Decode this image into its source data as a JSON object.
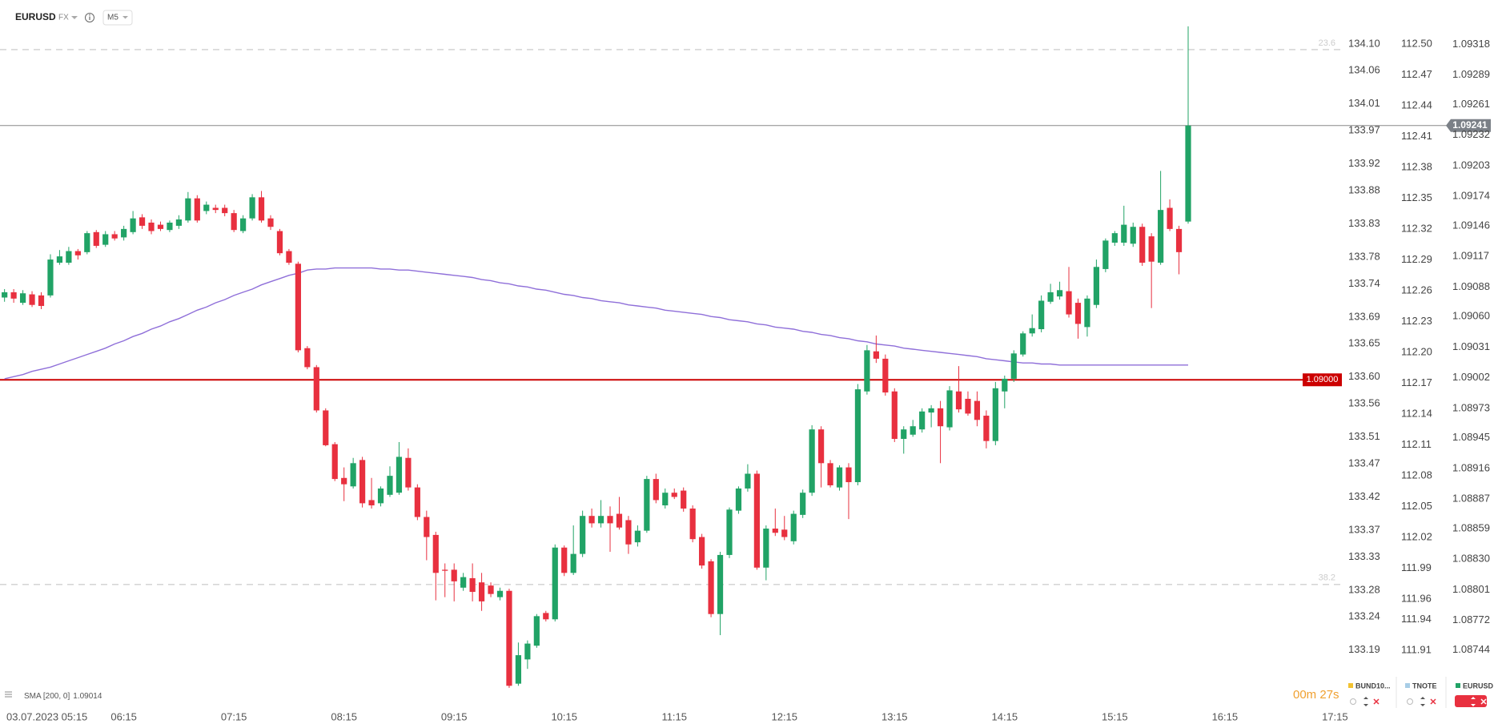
{
  "chart_data": {
    "type": "candlestick",
    "title": "EURUSD",
    "market": "FX",
    "timeframe": "M5",
    "up_color": "#21a366",
    "down_color": "#e8303f",
    "x": [
      "05:10",
      "05:15",
      "05:20",
      "05:25",
      "05:30",
      "05:35",
      "05:40",
      "05:45",
      "05:50",
      "05:55",
      "06:00",
      "06:05",
      "06:10",
      "06:15",
      "06:20",
      "06:25",
      "06:30",
      "06:35",
      "06:40",
      "06:45",
      "06:50",
      "06:55",
      "07:00",
      "07:05",
      "07:10",
      "07:15",
      "07:20",
      "07:25",
      "07:30",
      "07:35",
      "07:40",
      "07:45",
      "07:50",
      "07:55",
      "08:00",
      "08:05",
      "08:10",
      "08:15",
      "08:20",
      "08:25",
      "08:30",
      "08:35",
      "08:40",
      "08:45",
      "08:50",
      "08:55",
      "09:00",
      "09:05",
      "09:10",
      "09:15",
      "09:20",
      "09:25",
      "09:30",
      "09:35",
      "09:40",
      "09:45",
      "09:50",
      "09:55",
      "10:00",
      "10:05",
      "10:10",
      "10:15",
      "10:20",
      "10:25",
      "10:30",
      "10:35",
      "10:40",
      "10:45",
      "10:50",
      "10:55",
      "11:00",
      "11:05",
      "11:10",
      "11:15",
      "11:20",
      "11:25",
      "11:30",
      "11:35",
      "11:40",
      "11:45",
      "11:50",
      "11:55",
      "12:00",
      "12:05",
      "12:10",
      "12:15",
      "12:20",
      "12:25",
      "12:30",
      "12:35",
      "12:40",
      "12:45",
      "12:50",
      "12:55",
      "13:00",
      "13:05",
      "13:10",
      "13:15",
      "13:20",
      "13:25",
      "13:30",
      "13:35",
      "13:40",
      "13:45",
      "13:50",
      "13:55",
      "14:00",
      "14:05",
      "14:10",
      "14:15",
      "14:20",
      "14:25",
      "14:30",
      "14:35",
      "14:40",
      "14:45",
      "14:50",
      "14:55",
      "15:00",
      "15:05",
      "15:10",
      "15:15",
      "15:20",
      "15:25",
      "15:30",
      "15:35",
      "15:40",
      "15:45",
      "15:50",
      "15:55"
    ],
    "open": [
      1.09078,
      1.09083,
      1.09073,
      1.09081,
      1.0908,
      1.0908,
      1.09111,
      1.09111,
      1.09122,
      1.09121,
      1.0914,
      1.09128,
      1.09138,
      1.09135,
      1.0914,
      1.09154,
      1.09149,
      1.09147,
      1.09142,
      1.09146,
      1.09151,
      1.09172,
      1.0916,
      1.09163,
      1.09163,
      1.09158,
      1.09141,
      1.09153,
      1.09173,
      1.09153,
      1.09141,
      1.09122,
      1.0911,
      1.0903,
      1.09012,
      1.08971,
      1.08939,
      1.08907,
      1.08899,
      1.08924,
      1.08886,
      1.08883,
      1.08891,
      1.08893,
      1.08926,
      1.08898,
      1.0887,
      1.08853,
      1.0882,
      1.0882,
      1.08803,
      1.08812,
      1.08808,
      1.08805,
      1.08794,
      1.088,
      1.08712,
      1.08735,
      1.08748,
      1.08779,
      1.08773,
      1.08841,
      1.08817,
      1.08835,
      1.08871,
      1.08864,
      1.08871,
      1.08873,
      1.08867,
      1.08846,
      1.08857,
      1.08906,
      1.08881,
      1.08893,
      1.08895,
      1.08878,
      1.08851,
      1.08828,
      1.08778,
      1.08834,
      1.08876,
      1.08897,
      1.08911,
      1.08822,
      1.08859,
      1.08858,
      1.08847,
      1.08872,
      1.08893,
      1.08953,
      1.08921,
      1.08898,
      1.08917,
      1.08903,
      1.08989,
      1.09027,
      1.0902,
      1.08989,
      1.08944,
      1.08948,
      1.08953,
      1.08969,
      1.08973,
      1.08955,
      1.08989,
      1.08982,
      1.0898,
      1.08966,
      1.08942,
      1.08989,
      1.09001,
      1.09024,
      1.09044,
      1.09048,
      1.09074,
      1.09079,
      1.09084,
      1.09073,
      1.0905,
      1.09071,
      1.09105,
      1.0913,
      1.0913,
      1.09129,
      1.09145,
      1.09136,
      1.09111,
      1.09163,
      1.09143,
      1.0915
    ],
    "high": [
      1.09086,
      1.09086,
      1.09085,
      1.09084,
      1.09083,
      1.09119,
      1.09123,
      1.09126,
      1.09124,
      1.09141,
      1.09142,
      1.09141,
      1.09141,
      1.09146,
      1.0916,
      1.09157,
      1.09152,
      1.0915,
      1.09151,
      1.09156,
      1.09178,
      1.09175,
      1.09169,
      1.09166,
      1.09166,
      1.09161,
      1.09156,
      1.09176,
      1.09179,
      1.09156,
      1.09143,
      1.09124,
      1.09112,
      1.09032,
      1.09014,
      1.08973,
      1.08941,
      1.08917,
      1.08926,
      1.08927,
      1.08907,
      1.08899,
      1.08918,
      1.08941,
      1.08935,
      1.08901,
      1.08876,
      1.08856,
      1.08826,
      1.08826,
      1.08817,
      1.08826,
      1.08817,
      1.08808,
      1.08803,
      1.08802,
      1.08751,
      1.08753,
      1.08778,
      1.08781,
      1.08844,
      1.08843,
      1.08862,
      1.08876,
      1.08878,
      1.08886,
      1.0888,
      1.08889,
      1.08871,
      1.08862,
      1.08909,
      1.08911,
      1.08897,
      1.08897,
      1.08898,
      1.08881,
      1.08854,
      1.0883,
      1.08837,
      1.08879,
      1.08899,
      1.0892,
      1.08914,
      1.08862,
      1.08878,
      1.08871,
      1.08876,
      1.08896,
      1.08957,
      1.08956,
      1.08924,
      1.08919,
      1.08921,
      1.08996,
      1.09033,
      1.09042,
      1.09024,
      1.08992,
      1.08956,
      1.08962,
      1.08973,
      1.08976,
      1.0898,
      1.08994,
      1.09013,
      1.08989,
      1.08989,
      1.08971,
      1.08998,
      1.09004,
      1.09028,
      1.09046,
      1.09062,
      1.0908,
      1.09091,
      1.09093,
      1.09107,
      1.09077,
      1.0908,
      1.09114,
      1.09134,
      1.09141,
      1.09165,
      1.09149,
      1.09148,
      1.09139,
      1.09198,
      1.09171,
      1.09146,
      1.09335
    ],
    "low": [
      1.09074,
      1.09073,
      1.09071,
      1.09069,
      1.09067,
      1.09078,
      1.09109,
      1.09109,
      1.09114,
      1.09119,
      1.09125,
      1.09126,
      1.09132,
      1.09132,
      1.09138,
      1.09143,
      1.09138,
      1.09141,
      1.0914,
      1.09143,
      1.09149,
      1.09149,
      1.09157,
      1.09158,
      1.09155,
      1.0914,
      1.09139,
      1.09151,
      1.09149,
      1.09142,
      1.09118,
      1.09109,
      1.09026,
      1.0901,
      1.08969,
      1.08937,
      1.08904,
      1.08885,
      1.08897,
      1.08879,
      1.08878,
      1.0888,
      1.08889,
      1.08891,
      1.08895,
      1.08867,
      1.08829,
      1.08791,
      1.08794,
      1.0879,
      1.088,
      1.0879,
      1.08781,
      1.08794,
      1.08791,
      1.08708,
      1.0871,
      1.08726,
      1.08746,
      1.08771,
      1.08771,
      1.08814,
      1.08815,
      1.08832,
      1.0886,
      1.0886,
      1.08837,
      1.08858,
      1.08835,
      1.08842,
      1.08855,
      1.08883,
      1.08878,
      1.08887,
      1.08875,
      1.08846,
      1.08821,
      1.08775,
      1.08758,
      1.08831,
      1.08873,
      1.08894,
      1.0882,
      1.0881,
      1.08852,
      1.08848,
      1.08844,
      1.08869,
      1.0889,
      1.08898,
      1.08898,
      1.08895,
      1.08868,
      1.089,
      1.08986,
      1.09016,
      1.08985,
      1.08941,
      1.0893,
      1.08946,
      1.0895,
      1.08955,
      1.08921,
      1.08952,
      1.08969,
      1.08966,
      1.08956,
      1.08935,
      1.08938,
      1.08973,
      1.08998,
      1.09022,
      1.09041,
      1.09045,
      1.09072,
      1.09076,
      1.09059,
      1.09039,
      1.09041,
      1.09068,
      1.09102,
      1.09127,
      1.09127,
      1.09126,
      1.09108,
      1.09068,
      1.09109,
      1.09141,
      1.091,
      1.09148
    ],
    "close": [
      1.09083,
      1.09077,
      1.09082,
      1.09071,
      1.0907,
      1.09114,
      1.09117,
      1.09122,
      1.09118,
      1.09139,
      1.09127,
      1.09138,
      1.09134,
      1.09143,
      1.09153,
      1.09146,
      1.09141,
      1.09143,
      1.09149,
      1.09152,
      1.09172,
      1.09151,
      1.09166,
      1.09161,
      1.09158,
      1.09142,
      1.09153,
      1.09173,
      1.09151,
      1.09145,
      1.0912,
      1.09111,
      1.09028,
      1.09012,
      1.08971,
      1.08938,
      1.08906,
      1.08901,
      1.08921,
      1.08883,
      1.08881,
      1.08897,
      1.08909,
      1.08927,
      1.08898,
      1.0887,
      1.08851,
      1.08817,
      1.08819,
      1.08809,
      1.08813,
      1.08799,
      1.0879,
      1.08797,
      1.088,
      1.0871,
      1.08739,
      1.0875,
      1.08776,
      1.08773,
      1.08841,
      1.08817,
      1.08835,
      1.08871,
      1.08864,
      1.08871,
      1.08864,
      1.0886,
      1.08844,
      1.08857,
      1.08906,
      1.08886,
      1.08893,
      1.08889,
      1.08878,
      1.08849,
      1.08824,
      1.08778,
      1.08834,
      1.08877,
      1.08897,
      1.08911,
      1.08822,
      1.08859,
      1.08855,
      1.08851,
      1.08873,
      1.08893,
      1.08953,
      1.08921,
      1.089,
      1.08917,
      1.08903,
      1.08991,
      1.09028,
      1.0902,
      1.08988,
      1.08944,
      1.08953,
      1.08956,
      1.0897,
      1.08973,
      1.08956,
      1.0899,
      1.08972,
      1.08968,
      1.08962,
      1.08942,
      1.08992,
      1.09001,
      1.09025,
      1.09044,
      1.09049,
      1.09075,
      1.09083,
      1.09085,
      1.09062,
      1.09053,
      1.09077,
      1.09107,
      1.09132,
      1.09139,
      1.09147,
      1.09145,
      1.09111,
      1.09112,
      1.09161,
      1.09143,
      1.09121,
      1.09241
    ],
    "indicator": {
      "name": "SMA [200, 0]",
      "color": "#8f6fd9",
      "values": [
        1.09001,
        1.09003,
        1.09005,
        1.09008,
        1.0901,
        1.09012,
        1.09015,
        1.09018,
        1.09021,
        1.09024,
        1.09027,
        1.0903,
        1.09034,
        1.09037,
        1.09041,
        1.09044,
        1.09048,
        1.09051,
        1.09055,
        1.09058,
        1.09062,
        1.09066,
        1.09069,
        1.09073,
        1.09076,
        1.0908,
        1.09083,
        1.09086,
        1.0909,
        1.09093,
        1.09096,
        1.09099,
        1.09101,
        1.09104,
        1.09105,
        1.09105,
        1.09106,
        1.09106,
        1.09106,
        1.09106,
        1.09106,
        1.09105,
        1.09105,
        1.09104,
        1.09104,
        1.09103,
        1.09102,
        1.09101,
        1.091,
        1.09099,
        1.09098,
        1.09097,
        1.09095,
        1.09094,
        1.09092,
        1.09091,
        1.09089,
        1.09088,
        1.09086,
        1.09085,
        1.09083,
        1.09081,
        1.0908,
        1.09078,
        1.09077,
        1.09075,
        1.09074,
        1.09073,
        1.09071,
        1.0907,
        1.09069,
        1.09068,
        1.09066,
        1.09065,
        1.09064,
        1.09063,
        1.09062,
        1.0906,
        1.09059,
        1.09057,
        1.09056,
        1.09055,
        1.09053,
        1.09052,
        1.0905,
        1.09049,
        1.09048,
        1.09046,
        1.09045,
        1.09043,
        1.09042,
        1.0904,
        1.09039,
        1.09037,
        1.09036,
        1.09034,
        1.09033,
        1.09032,
        1.0903,
        1.09029,
        1.09028,
        1.09027,
        1.09026,
        1.09025,
        1.09024,
        1.09023,
        1.09022,
        1.0902,
        1.09019,
        1.09018,
        1.09017,
        1.09016,
        1.09016,
        1.09015,
        1.09015,
        1.09014,
        1.09014,
        1.09014,
        1.09014,
        1.09014,
        1.09014,
        1.09014,
        1.09014,
        1.09014,
        1.09014,
        1.09014,
        1.09014,
        1.09014,
        1.09014,
        1.09014
      ]
    },
    "level": {
      "value": 1.09,
      "label": "1.09000",
      "color": "#cc0000"
    },
    "fib_levels": [
      {
        "value": 1.09313,
        "label": "23.6"
      },
      {
        "value": 1.08806,
        "label": "38.2"
      }
    ],
    "ylim": [
      1.08692,
      1.0936
    ],
    "yticks": [
      1.09318,
      1.09289,
      1.09261,
      1.09232,
      1.09203,
      1.09174,
      1.09146,
      1.09117,
      1.09088,
      {
        "value": 1.0906,
        "label": "1.09060"
      },
      1.09031,
      1.09002,
      1.08973,
      1.08945,
      1.08916,
      1.08887,
      1.08859,
      {
        "value": 1.0883,
        "label": "1.08830"
      },
      1.08801,
      1.08772,
      1.08744
    ],
    "xticks": [
      {
        "value": "05:15",
        "label": "03.07.2023 05:15"
      },
      "06:15",
      "07:15",
      "08:15",
      "09:15",
      "10:15",
      "11:15",
      "12:15",
      "13:15",
      "14:15",
      "15:15",
      "16:15",
      "17:15"
    ],
    "secondary_axes": [
      {
        "name": "BUND10...",
        "color": "#f2c230",
        "ylim": [
          133.108,
          134.166
        ],
        "yticks": [
          {
            "value": 134.1,
            "label": "134.10"
          },
          134.06,
          134.01,
          133.97,
          133.92,
          133.88,
          133.83,
          133.78,
          133.74,
          133.69,
          133.65,
          {
            "value": 133.6,
            "label": "133.60"
          },
          133.56,
          133.51,
          133.47,
          133.42,
          133.37,
          133.33,
          133.28,
          133.24,
          133.19
        ]
      },
      {
        "name": "TNOTE",
        "color": "#a8cde6",
        "ylim": [
          111.857,
          112.543
        ],
        "yticks": [
          {
            "value": 112.5,
            "label": "112.50"
          },
          112.47,
          112.44,
          112.41,
          112.38,
          112.35,
          112.32,
          112.29,
          112.26,
          112.23,
          {
            "value": 112.2,
            "label": "112.20"
          },
          112.17,
          112.14,
          112.11,
          112.08,
          112.05,
          112.02,
          111.99,
          111.96,
          111.94,
          111.91
        ]
      }
    ],
    "countdown": "00m 27s"
  }
}
